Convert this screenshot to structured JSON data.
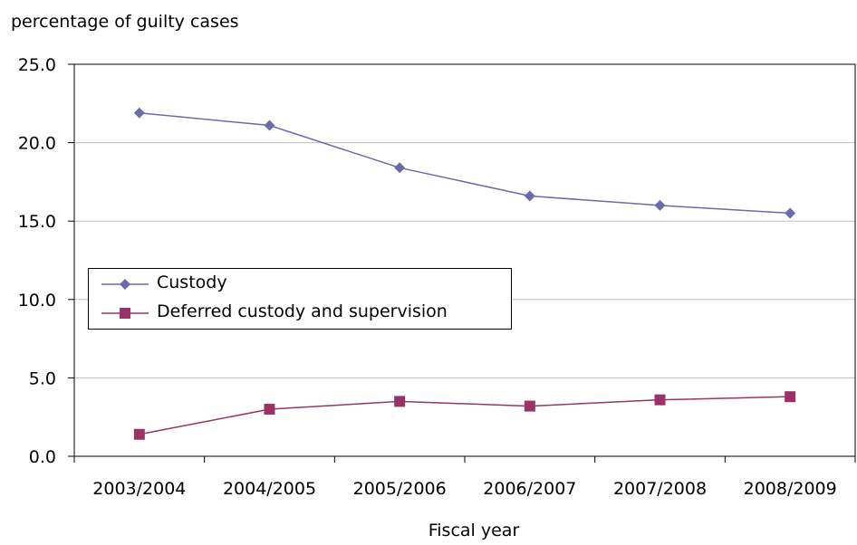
{
  "chart_data": {
    "type": "line",
    "ylabel": "percentage of guilty cases",
    "xlabel": "Fiscal year",
    "categories": [
      "2003/2004",
      "2004/2005",
      "2005/2006",
      "2006/2007",
      "2007/2008",
      "2008/2009"
    ],
    "ylim": [
      0,
      25
    ],
    "yticks": [
      "0.0",
      "5.0",
      "10.0",
      "15.0",
      "20.0",
      "25.0"
    ],
    "ytick_values": [
      0,
      5,
      10,
      15,
      20,
      25
    ],
    "grid": true,
    "legend_position": "left-middle",
    "series": [
      {
        "name": "Custody",
        "values": [
          21.9,
          21.1,
          18.4,
          16.6,
          16.0,
          15.5
        ],
        "color": "#6b6baa",
        "marker": "diamond"
      },
      {
        "name": "Deferred custody and supervision",
        "values": [
          1.4,
          3.0,
          3.5,
          3.2,
          3.6,
          3.8
        ],
        "color": "#993366",
        "marker": "square"
      }
    ]
  }
}
